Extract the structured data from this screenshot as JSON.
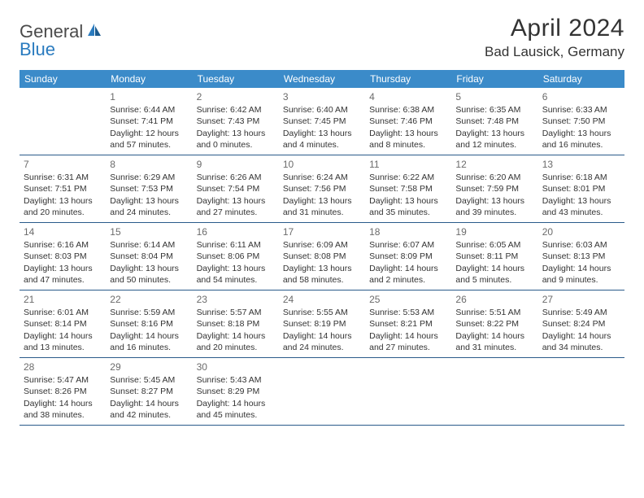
{
  "logo": {
    "part1": "General",
    "part2": "Blue"
  },
  "title": "April 2024",
  "location": "Bad Lausick, Germany",
  "colors": {
    "header_bg": "#3b8bc9",
    "row_border": "#2a5b8a",
    "logo_gray": "#4a4a4a",
    "logo_blue": "#2a7bbf"
  },
  "weekdays": [
    "Sunday",
    "Monday",
    "Tuesday",
    "Wednesday",
    "Thursday",
    "Friday",
    "Saturday"
  ],
  "weeks": [
    [
      null,
      {
        "n": "1",
        "sr": "Sunrise: 6:44 AM",
        "ss": "Sunset: 7:41 PM",
        "dl": "Daylight: 12 hours and 57 minutes."
      },
      {
        "n": "2",
        "sr": "Sunrise: 6:42 AM",
        "ss": "Sunset: 7:43 PM",
        "dl": "Daylight: 13 hours and 0 minutes."
      },
      {
        "n": "3",
        "sr": "Sunrise: 6:40 AM",
        "ss": "Sunset: 7:45 PM",
        "dl": "Daylight: 13 hours and 4 minutes."
      },
      {
        "n": "4",
        "sr": "Sunrise: 6:38 AM",
        "ss": "Sunset: 7:46 PM",
        "dl": "Daylight: 13 hours and 8 minutes."
      },
      {
        "n": "5",
        "sr": "Sunrise: 6:35 AM",
        "ss": "Sunset: 7:48 PM",
        "dl": "Daylight: 13 hours and 12 minutes."
      },
      {
        "n": "6",
        "sr": "Sunrise: 6:33 AM",
        "ss": "Sunset: 7:50 PM",
        "dl": "Daylight: 13 hours and 16 minutes."
      }
    ],
    [
      {
        "n": "7",
        "sr": "Sunrise: 6:31 AM",
        "ss": "Sunset: 7:51 PM",
        "dl": "Daylight: 13 hours and 20 minutes."
      },
      {
        "n": "8",
        "sr": "Sunrise: 6:29 AM",
        "ss": "Sunset: 7:53 PM",
        "dl": "Daylight: 13 hours and 24 minutes."
      },
      {
        "n": "9",
        "sr": "Sunrise: 6:26 AM",
        "ss": "Sunset: 7:54 PM",
        "dl": "Daylight: 13 hours and 27 minutes."
      },
      {
        "n": "10",
        "sr": "Sunrise: 6:24 AM",
        "ss": "Sunset: 7:56 PM",
        "dl": "Daylight: 13 hours and 31 minutes."
      },
      {
        "n": "11",
        "sr": "Sunrise: 6:22 AM",
        "ss": "Sunset: 7:58 PM",
        "dl": "Daylight: 13 hours and 35 minutes."
      },
      {
        "n": "12",
        "sr": "Sunrise: 6:20 AM",
        "ss": "Sunset: 7:59 PM",
        "dl": "Daylight: 13 hours and 39 minutes."
      },
      {
        "n": "13",
        "sr": "Sunrise: 6:18 AM",
        "ss": "Sunset: 8:01 PM",
        "dl": "Daylight: 13 hours and 43 minutes."
      }
    ],
    [
      {
        "n": "14",
        "sr": "Sunrise: 6:16 AM",
        "ss": "Sunset: 8:03 PM",
        "dl": "Daylight: 13 hours and 47 minutes."
      },
      {
        "n": "15",
        "sr": "Sunrise: 6:14 AM",
        "ss": "Sunset: 8:04 PM",
        "dl": "Daylight: 13 hours and 50 minutes."
      },
      {
        "n": "16",
        "sr": "Sunrise: 6:11 AM",
        "ss": "Sunset: 8:06 PM",
        "dl": "Daylight: 13 hours and 54 minutes."
      },
      {
        "n": "17",
        "sr": "Sunrise: 6:09 AM",
        "ss": "Sunset: 8:08 PM",
        "dl": "Daylight: 13 hours and 58 minutes."
      },
      {
        "n": "18",
        "sr": "Sunrise: 6:07 AM",
        "ss": "Sunset: 8:09 PM",
        "dl": "Daylight: 14 hours and 2 minutes."
      },
      {
        "n": "19",
        "sr": "Sunrise: 6:05 AM",
        "ss": "Sunset: 8:11 PM",
        "dl": "Daylight: 14 hours and 5 minutes."
      },
      {
        "n": "20",
        "sr": "Sunrise: 6:03 AM",
        "ss": "Sunset: 8:13 PM",
        "dl": "Daylight: 14 hours and 9 minutes."
      }
    ],
    [
      {
        "n": "21",
        "sr": "Sunrise: 6:01 AM",
        "ss": "Sunset: 8:14 PM",
        "dl": "Daylight: 14 hours and 13 minutes."
      },
      {
        "n": "22",
        "sr": "Sunrise: 5:59 AM",
        "ss": "Sunset: 8:16 PM",
        "dl": "Daylight: 14 hours and 16 minutes."
      },
      {
        "n": "23",
        "sr": "Sunrise: 5:57 AM",
        "ss": "Sunset: 8:18 PM",
        "dl": "Daylight: 14 hours and 20 minutes."
      },
      {
        "n": "24",
        "sr": "Sunrise: 5:55 AM",
        "ss": "Sunset: 8:19 PM",
        "dl": "Daylight: 14 hours and 24 minutes."
      },
      {
        "n": "25",
        "sr": "Sunrise: 5:53 AM",
        "ss": "Sunset: 8:21 PM",
        "dl": "Daylight: 14 hours and 27 minutes."
      },
      {
        "n": "26",
        "sr": "Sunrise: 5:51 AM",
        "ss": "Sunset: 8:22 PM",
        "dl": "Daylight: 14 hours and 31 minutes."
      },
      {
        "n": "27",
        "sr": "Sunrise: 5:49 AM",
        "ss": "Sunset: 8:24 PM",
        "dl": "Daylight: 14 hours and 34 minutes."
      }
    ],
    [
      {
        "n": "28",
        "sr": "Sunrise: 5:47 AM",
        "ss": "Sunset: 8:26 PM",
        "dl": "Daylight: 14 hours and 38 minutes."
      },
      {
        "n": "29",
        "sr": "Sunrise: 5:45 AM",
        "ss": "Sunset: 8:27 PM",
        "dl": "Daylight: 14 hours and 42 minutes."
      },
      {
        "n": "30",
        "sr": "Sunrise: 5:43 AM",
        "ss": "Sunset: 8:29 PM",
        "dl": "Daylight: 14 hours and 45 minutes."
      },
      null,
      null,
      null,
      null
    ]
  ]
}
